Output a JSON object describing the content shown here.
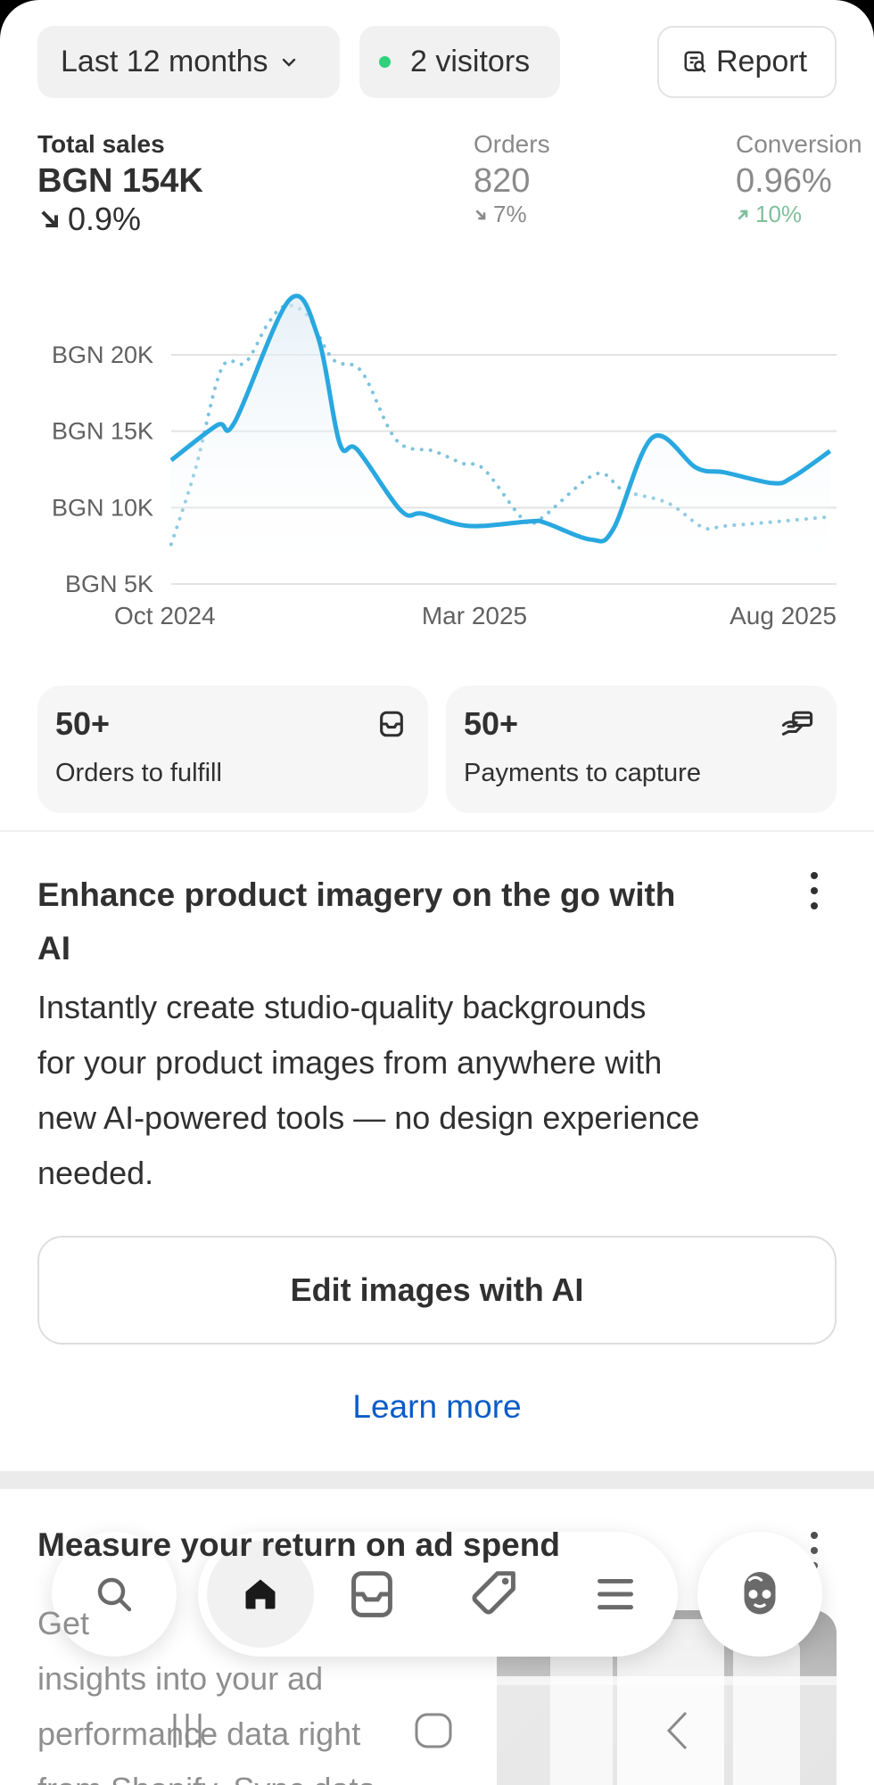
{
  "toolbar": {
    "date_range": "Last 12 months",
    "visitors": "2 visitors",
    "report": "Report",
    "visitor_dot_color": "#2fd27a"
  },
  "metrics": [
    {
      "label": "Total sales",
      "value": "BGN 154K",
      "change": "0.9%",
      "direction": "down"
    },
    {
      "label": "Orders",
      "value": "820",
      "change": "7%",
      "direction": "down"
    },
    {
      "label": "Conversion",
      "value": "0.96%",
      "change": "10%",
      "direction": "up",
      "change_color": "#7fbf9a"
    }
  ],
  "chart_data": {
    "type": "line",
    "y_ticks": [
      "BGN 5K",
      "BGN 10K",
      "BGN 15K",
      "BGN 20K"
    ],
    "ylim": [
      5,
      25
    ],
    "y_unit": "BGN thousands",
    "x_ticks": [
      {
        "label": "Oct 2024",
        "date": "2024-10-01"
      },
      {
        "label": "Mar 2025",
        "date": "2025-03-01"
      },
      {
        "label": "Aug 2025",
        "date": "2025-08-01"
      }
    ],
    "grid": true,
    "series": [
      {
        "style": "solid",
        "color": "#29a8e0",
        "points": [
          [
            "2024-10-01",
            13.1
          ],
          [
            "2024-10-22",
            15.4
          ],
          [
            "2024-10-30",
            15.6
          ],
          [
            "2024-11-24",
            23.6
          ],
          [
            "2024-12-07",
            21.2
          ],
          [
            "2024-12-17",
            14.2
          ],
          [
            "2024-12-25",
            13.8
          ],
          [
            "2025-01-14",
            9.8
          ],
          [
            "2025-01-24",
            9.6
          ],
          [
            "2025-02-14",
            8.8
          ],
          [
            "2025-03-14",
            9.1
          ],
          [
            "2025-03-21",
            9.0
          ],
          [
            "2025-04-11",
            7.9
          ],
          [
            "2025-04-21",
            8.6
          ],
          [
            "2025-05-09",
            14.6
          ],
          [
            "2025-05-29",
            12.6
          ],
          [
            "2025-06-11",
            12.3
          ],
          [
            "2025-07-03",
            11.6
          ],
          [
            "2025-07-12",
            12.0
          ],
          [
            "2025-07-29",
            13.7
          ]
        ]
      },
      {
        "style": "dotted",
        "color": "#7cc3df",
        "points": [
          [
            "2024-10-01",
            7.6
          ],
          [
            "2024-10-12",
            12.5
          ],
          [
            "2024-10-24",
            19.1
          ],
          [
            "2024-11-04",
            19.5
          ],
          [
            "2024-11-14",
            22.0
          ],
          [
            "2024-11-22",
            23.2
          ],
          [
            "2024-12-02",
            22.6
          ],
          [
            "2024-12-14",
            19.7
          ],
          [
            "2024-12-27",
            18.9
          ],
          [
            "2025-01-12",
            14.4
          ],
          [
            "2025-01-29",
            13.7
          ],
          [
            "2025-02-11",
            12.9
          ],
          [
            "2025-02-21",
            12.5
          ],
          [
            "2025-03-11",
            9.2
          ],
          [
            "2025-03-19",
            9.3
          ],
          [
            "2025-04-13",
            12.2
          ],
          [
            "2025-04-26",
            11.1
          ],
          [
            "2025-05-16",
            10.3
          ],
          [
            "2025-06-01",
            8.7
          ],
          [
            "2025-06-11",
            8.8
          ],
          [
            "2025-07-06",
            9.1
          ],
          [
            "2025-07-29",
            9.4
          ]
        ]
      }
    ]
  },
  "cards": [
    {
      "value": "50+",
      "label": "Orders to fulfill",
      "icon": "inbox-icon"
    },
    {
      "value": "50+",
      "label": "Payments to capture",
      "icon": "hand-card-icon"
    }
  ],
  "promo": {
    "title_lines": [
      "Enhance product imagery on the go with",
      "AI"
    ],
    "body_lines": [
      "Instantly create studio-quality backgrounds",
      "for your product images from anywhere with",
      "new AI-powered tools — no design experience",
      "needed."
    ],
    "button": "Edit images with AI",
    "link": "Learn more",
    "link_color": "#0b5cc8"
  },
  "next_card": {
    "title": "Measure your return on ad spend",
    "body_lines": [
      "Get",
      "insights into your ad",
      "performance data right",
      "from Shopify. Sync data"
    ]
  },
  "bottom_nav": {
    "items": [
      "search",
      "home",
      "orders",
      "products",
      "menu",
      "profile"
    ],
    "active": "home"
  },
  "system_nav": [
    "recents",
    "home",
    "back"
  ]
}
